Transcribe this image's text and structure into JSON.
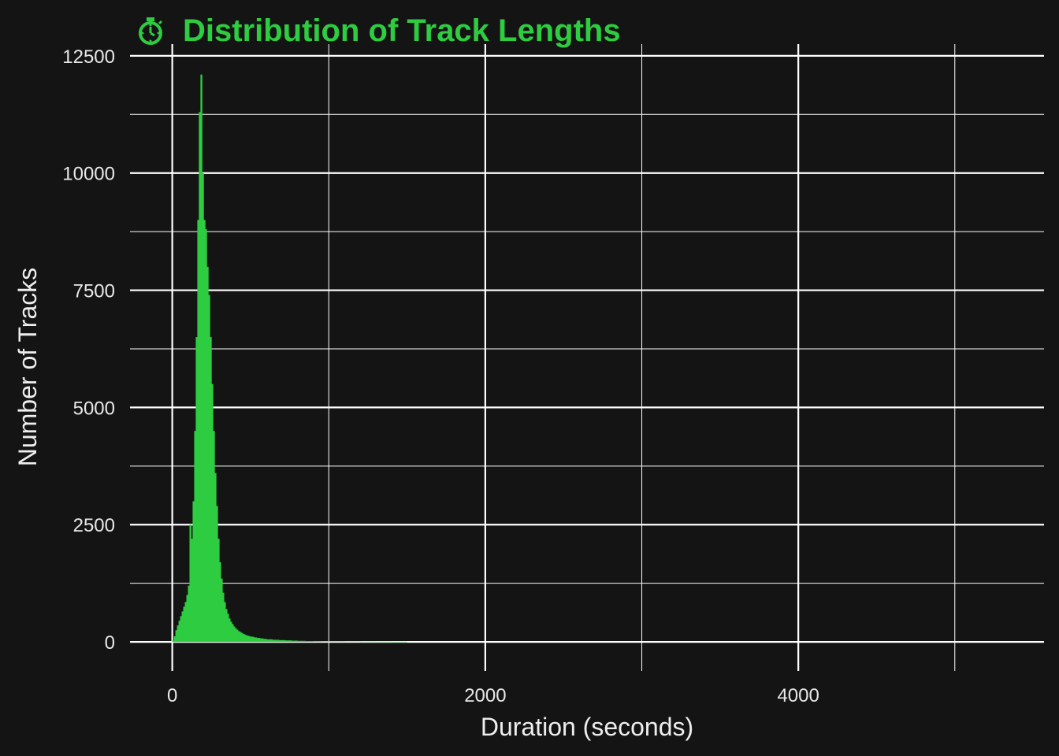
{
  "chart_data": {
    "type": "bar",
    "title": "Distribution of Track Lengths",
    "title_icon": "stopwatch-icon",
    "xlabel": "Duration (seconds)",
    "ylabel": "Number of Tracks",
    "xlim": [
      -270,
      5570
    ],
    "ylim": [
      -620,
      12750
    ],
    "x_ticks": [
      0,
      2000,
      4000
    ],
    "x_tick_labels": [
      "0",
      "2000",
      "4000"
    ],
    "y_ticks": [
      0,
      2500,
      5000,
      7500,
      10000,
      12500
    ],
    "y_tick_labels": [
      "0",
      "2500",
      "5000",
      "7500",
      "10000",
      "12500"
    ],
    "x_minor_ticks": [
      1000,
      3000,
      5000
    ],
    "y_minor_ticks": [
      1250,
      3750,
      6250,
      8750,
      11250
    ],
    "grid": true,
    "bin_width": 10,
    "bins_x_start": [
      0,
      10,
      20,
      30,
      40,
      50,
      60,
      70,
      80,
      90,
      100,
      110,
      120,
      130,
      140,
      150,
      160,
      170,
      180,
      190,
      200,
      210,
      220,
      230,
      240,
      250,
      260,
      270,
      280,
      290,
      300,
      310,
      320,
      330,
      340,
      350,
      360,
      370,
      380,
      390,
      400,
      410,
      420,
      430,
      440,
      450,
      460,
      470,
      480,
      490,
      500,
      520,
      540,
      560,
      580,
      600,
      640,
      680,
      720,
      760,
      800,
      850,
      900,
      950,
      1000,
      1100,
      1200,
      1300,
      1400
    ],
    "values": [
      30,
      120,
      250,
      350,
      450,
      550,
      650,
      750,
      850,
      1000,
      1200,
      2500,
      2200,
      3000,
      4500,
      6500,
      9000,
      11300,
      12100,
      10000,
      9000,
      8800,
      8000,
      7400,
      6500,
      5500,
      4500,
      3600,
      2900,
      2200,
      1700,
      1350,
      1050,
      850,
      700,
      600,
      500,
      430,
      380,
      330,
      290,
      260,
      230,
      210,
      190,
      170,
      155,
      140,
      130,
      120,
      110,
      95,
      85,
      75,
      65,
      55,
      45,
      38,
      32,
      27,
      22,
      18,
      15,
      12,
      10,
      8,
      6,
      5,
      3
    ],
    "colors": {
      "background": "#141414",
      "bars": "#2ecc40",
      "title": "#2ecc40",
      "grid": "#ffffff"
    }
  }
}
